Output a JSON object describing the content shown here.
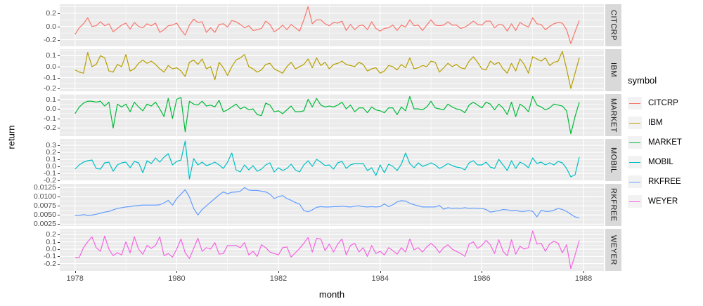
{
  "axis": {
    "x_label": "month",
    "y_label": "return"
  },
  "legend": {
    "title": "symbol",
    "entries": [
      {
        "label": "CITCRP",
        "color": "#F8766D"
      },
      {
        "label": "IBM",
        "color": "#B79F00"
      },
      {
        "label": "MARKET",
        "color": "#00BA38"
      },
      {
        "label": "MOBIL",
        "color": "#00BFC4"
      },
      {
        "label": "RKFREE",
        "color": "#619CFF"
      },
      {
        "label": "WEYER",
        "color": "#F564E3"
      }
    ]
  },
  "panel_style": {
    "background": "#EBEBEB",
    "strip_background": "#D9D9D9",
    "grid_color": "#FFFFFF",
    "tick_text_color": "#4D4D4D"
  },
  "chart_data": {
    "type": "line",
    "title": "",
    "xlabel": "month",
    "ylabel": "return",
    "faceting": "one row per symbol, free y scales, strip labels on right",
    "x_start_year": 1978,
    "x_step": "1 month",
    "n_points": 120,
    "xlim": [
      1977.7,
      1988.4
    ],
    "x_ticks": [
      1978,
      1980,
      1982,
      1984,
      1986,
      1988
    ],
    "x_tick_labels": [
      "1978",
      "1980",
      "1982",
      "1984",
      "1986",
      "1988"
    ],
    "x_minor_ticks": [
      1979,
      1981,
      1983,
      1985,
      1987
    ],
    "series": [
      {
        "name": "CITCRP",
        "color": "#F8766D",
        "ylim": [
          -0.3,
          0.335
        ],
        "y_ticks": [
          0.2,
          0.0,
          -0.2
        ],
        "y_tick_labels": [
          "0.2",
          "0.0",
          "-0.2"
        ],
        "values": [
          -0.12,
          -0.02,
          0.04,
          0.13,
          0.0,
          0.01,
          0.07,
          0.01,
          0.04,
          -0.08,
          -0.03,
          0.02,
          0.05,
          -0.04,
          0.06,
          0.0,
          -0.02,
          0.04,
          0.01,
          0.05,
          -0.09,
          -0.05,
          0.01,
          0.02,
          0.05,
          -0.05,
          -0.13,
          0.02,
          0.11,
          0.06,
          0.07,
          -0.09,
          -0.02,
          -0.09,
          0.03,
          0.04,
          -0.01,
          0.09,
          0.07,
          0.03,
          -0.02,
          0.01,
          -0.06,
          -0.05,
          -0.03,
          0.08,
          0.03,
          -0.08,
          -0.04,
          0.02,
          -0.05,
          0.03,
          -0.02,
          -0.07,
          0.1,
          0.3,
          0.04,
          0.1,
          0.1,
          0.04,
          0.01,
          0.06,
          0.05,
          0.08,
          -0.06,
          0.03,
          -0.05,
          0.01,
          0.02,
          -0.05,
          0.07,
          -0.03,
          -0.07,
          -0.03,
          -0.02,
          0.02,
          -0.06,
          0.02,
          -0.01,
          0.1,
          0.01,
          0.02,
          -0.06,
          0.02,
          0.1,
          0.02,
          0.01,
          0.02,
          0.07,
          0.02,
          0.02,
          -0.03,
          -0.01,
          0.03,
          0.08,
          0.03,
          0.02,
          0.08,
          0.08,
          -0.02,
          0.03,
          0.02,
          -0.07,
          0.04,
          -0.06,
          0.06,
          0.02,
          -0.01,
          0.13,
          0.04,
          0.03,
          -0.05,
          0.0,
          0.04,
          0.06,
          0.05,
          -0.05,
          -0.26,
          -0.08,
          0.09
        ]
      },
      {
        "name": "IBM",
        "color": "#B79F00",
        "ylim": [
          -0.225,
          0.16
        ],
        "y_ticks": [
          0.1,
          0.0,
          -0.1,
          -0.2
        ],
        "y_tick_labels": [
          "0.1",
          "0.0",
          "-0.1",
          "-0.2"
        ],
        "values": [
          -0.03,
          -0.05,
          -0.06,
          0.13,
          0.0,
          0.02,
          0.1,
          0.08,
          -0.04,
          -0.05,
          0.02,
          0.0,
          0.11,
          -0.04,
          -0.02,
          0.03,
          0.06,
          0.03,
          0.05,
          0.02,
          -0.02,
          -0.05,
          0.01,
          -0.02,
          -0.01,
          -0.04,
          -0.09,
          0.04,
          0.06,
          0.02,
          0.07,
          -0.02,
          0.0,
          -0.12,
          0.04,
          -0.01,
          -0.08,
          0.0,
          0.06,
          0.08,
          0.11,
          0.0,
          -0.02,
          -0.05,
          -0.03,
          0.02,
          0.03,
          -0.02,
          -0.04,
          -0.06,
          0.0,
          0.04,
          -0.02,
          0.0,
          0.02,
          0.07,
          -0.01,
          0.08,
          0.01,
          0.04,
          -0.02,
          0.02,
          0.03,
          0.05,
          0.02,
          0.01,
          0.0,
          0.04,
          0.02,
          -0.04,
          -0.02,
          -0.01,
          -0.06,
          -0.04,
          0.01,
          0.0,
          -0.03,
          0.02,
          -0.01,
          0.08,
          -0.02,
          -0.01,
          0.01,
          0.0,
          0.05,
          0.04,
          -0.05,
          -0.01,
          0.03,
          0.0,
          0.02,
          -0.01,
          -0.02,
          0.05,
          0.09,
          0.04,
          -0.02,
          -0.03,
          0.05,
          0.02,
          0.04,
          -0.02,
          -0.06,
          0.03,
          -0.04,
          0.07,
          0.02,
          -0.06,
          0.09,
          0.07,
          0.05,
          0.08,
          0.01,
          0.04,
          0.05,
          0.14,
          -0.02,
          -0.2,
          -0.06,
          0.08
        ]
      },
      {
        "name": "MARKET",
        "color": "#00BA38",
        "ylim": [
          -0.285,
          0.155
        ],
        "y_ticks": [
          0.1,
          0.0,
          -0.1,
          -0.2
        ],
        "y_tick_labels": [
          "0.1",
          "0.0",
          "-0.1",
          "-0.2"
        ],
        "values": [
          -0.05,
          0.02,
          0.06,
          0.08,
          0.08,
          0.07,
          0.08,
          0.03,
          0.07,
          -0.2,
          0.05,
          0.02,
          0.05,
          -0.03,
          0.07,
          0.02,
          -0.02,
          0.05,
          0.03,
          0.07,
          0.0,
          -0.08,
          0.11,
          -0.1,
          0.1,
          0.12,
          -0.24,
          0.08,
          0.05,
          0.04,
          0.08,
          0.03,
          0.04,
          0.02,
          0.09,
          -0.03,
          -0.01,
          0.02,
          0.05,
          0.0,
          0.02,
          -0.01,
          0.0,
          -0.06,
          -0.07,
          0.06,
          0.04,
          -0.03,
          -0.02,
          -0.05,
          -0.01,
          0.03,
          -0.03,
          -0.03,
          -0.02,
          0.1,
          0.02,
          0.11,
          0.04,
          0.02,
          0.03,
          0.02,
          0.04,
          0.07,
          0.0,
          0.04,
          -0.03,
          0.01,
          0.01,
          -0.04,
          0.02,
          -0.01,
          -0.02,
          -0.04,
          0.01,
          0.01,
          -0.06,
          0.02,
          -0.02,
          0.13,
          0.0,
          0.0,
          -0.01,
          0.02,
          0.08,
          0.01,
          0.0,
          -0.01,
          0.05,
          0.02,
          0.0,
          -0.01,
          -0.04,
          0.04,
          0.07,
          0.04,
          0.01,
          0.07,
          0.05,
          -0.01,
          0.05,
          0.01,
          -0.06,
          0.07,
          -0.08,
          0.05,
          0.02,
          -0.03,
          0.13,
          0.04,
          0.02,
          -0.01,
          0.01,
          0.05,
          0.04,
          0.03,
          -0.02,
          -0.26,
          -0.08,
          0.07
        ]
      },
      {
        "name": "MOBIL",
        "color": "#00BFC4",
        "ylim": [
          -0.21,
          0.39
        ],
        "y_ticks": [
          0.3,
          0.2,
          0.1,
          0.0,
          -0.1,
          -0.2
        ],
        "y_tick_labels": [
          "0.3",
          "0.2",
          "0.1",
          "0.0",
          "-0.1",
          "-0.2"
        ],
        "values": [
          -0.04,
          0.02,
          0.06,
          0.08,
          0.09,
          -0.03,
          -0.04,
          0.05,
          0.06,
          -0.07,
          0.02,
          0.05,
          0.06,
          -0.02,
          0.07,
          0.05,
          -0.09,
          0.08,
          0.04,
          0.12,
          0.06,
          0.13,
          0.18,
          0.02,
          0.07,
          0.09,
          0.36,
          -0.18,
          0.11,
          0.02,
          0.06,
          0.01,
          0.03,
          0.06,
          0.02,
          -0.03,
          0.06,
          0.19,
          -0.05,
          -0.08,
          0.02,
          -0.05,
          0.01,
          -0.07,
          -0.04,
          0.02,
          0.05,
          -0.08,
          -0.02,
          -0.06,
          -0.03,
          0.03,
          -0.05,
          -0.08,
          0.02,
          0.08,
          0.0,
          0.1,
          0.06,
          0.01,
          0.02,
          -0.04,
          0.05,
          0.07,
          -0.03,
          0.02,
          0.04,
          0.04,
          0.04,
          -0.06,
          -0.02,
          -0.13,
          0.02,
          -0.09,
          0.03,
          0.0,
          -0.06,
          0.03,
          0.19,
          0.04,
          -0.02,
          0.05,
          0.0,
          0.02,
          0.05,
          0.02,
          -0.03,
          0.0,
          0.04,
          0.01,
          -0.01,
          -0.02,
          -0.05,
          0.05,
          0.08,
          0.02,
          0.02,
          0.06,
          -0.01,
          -0.03,
          0.1,
          0.02,
          -0.06,
          0.08,
          -0.03,
          0.06,
          0.03,
          -0.02,
          0.12,
          0.04,
          0.06,
          0.02,
          0.05,
          0.02,
          0.07,
          0.05,
          -0.03,
          -0.15,
          -0.12,
          0.13
        ]
      },
      {
        "name": "RKFREE",
        "color": "#619CFF",
        "ylim": [
          0.002,
          0.0135
        ],
        "y_ticks": [
          0.0125,
          0.01,
          0.0075,
          0.005,
          0.0025
        ],
        "y_tick_labels": [
          "0.0125",
          "0.0100",
          "0.0075",
          "0.0050",
          "0.0025"
        ],
        "values": [
          0.0049,
          0.0049,
          0.0051,
          0.0049,
          0.005,
          0.0052,
          0.0055,
          0.0058,
          0.006,
          0.0064,
          0.0068,
          0.007,
          0.0072,
          0.0073,
          0.0075,
          0.0076,
          0.0077,
          0.0077,
          0.0077,
          0.0077,
          0.0078,
          0.0083,
          0.009,
          0.0077,
          0.0095,
          0.0107,
          0.0119,
          0.0099,
          0.0068,
          0.005,
          0.0065,
          0.0075,
          0.0085,
          0.0095,
          0.0105,
          0.0113,
          0.0108,
          0.0112,
          0.0113,
          0.0115,
          0.0125,
          0.0118,
          0.0117,
          0.0117,
          0.0115,
          0.0113,
          0.0107,
          0.0095,
          0.01,
          0.0103,
          0.0095,
          0.009,
          0.0084,
          0.008,
          0.0062,
          0.0059,
          0.0064,
          0.0071,
          0.0073,
          0.0072,
          0.0072,
          0.0073,
          0.0073,
          0.0074,
          0.0073,
          0.0072,
          0.0074,
          0.0075,
          0.0073,
          0.0072,
          0.0073,
          0.0072,
          0.0073,
          0.008,
          0.0073,
          0.0078,
          0.0086,
          0.0089,
          0.0088,
          0.0082,
          0.0078,
          0.0075,
          0.0072,
          0.0072,
          0.0072,
          0.0072,
          0.0076,
          0.0066,
          0.007,
          0.0068,
          0.0069,
          0.0068,
          0.007,
          0.0068,
          0.0069,
          0.0068,
          0.0068,
          0.0065,
          0.0058,
          0.006,
          0.0062,
          0.0065,
          0.0064,
          0.0062,
          0.0063,
          0.006,
          0.006,
          0.0062,
          0.006,
          0.0045,
          0.0063,
          0.006,
          0.006,
          0.0063,
          0.0068,
          0.0065,
          0.006,
          0.0052,
          0.0045,
          0.0042
        ]
      },
      {
        "name": "WEYER",
        "color": "#F564E3",
        "ylim": [
          -0.3,
          0.28
        ],
        "y_ticks": [
          0.2,
          0.1,
          0.0,
          -0.1,
          -0.2
        ],
        "y_tick_labels": [
          "0.2",
          "0.1",
          "0.0",
          "-0.1",
          "-0.2"
        ],
        "values": [
          -0.115,
          -0.115,
          0.02,
          0.1,
          0.17,
          0.02,
          -0.03,
          0.18,
          0.0,
          -0.09,
          -0.05,
          -0.08,
          0.1,
          -0.05,
          0.17,
          0.0,
          -0.07,
          0.05,
          0.01,
          0.05,
          0.17,
          -0.09,
          -0.06,
          -0.11,
          0.0,
          0.14,
          -0.05,
          -0.13,
          0.01,
          0.15,
          -0.03,
          0.02,
          0.0,
          0.09,
          -0.07,
          -0.06,
          0.05,
          0.05,
          0.05,
          0.02,
          0.09,
          -0.08,
          -0.03,
          -0.1,
          0.06,
          0.02,
          -0.04,
          -0.06,
          -0.08,
          0.02,
          0.03,
          -0.11,
          -0.05,
          0.01,
          0.08,
          0.16,
          -0.04,
          0.15,
          0.14,
          -0.02,
          0.07,
          -0.04,
          0.07,
          0.14,
          -0.08,
          0.05,
          0.08,
          -0.04,
          0.02,
          -0.1,
          0.05,
          -0.06,
          -0.03,
          -0.08,
          0.02,
          -0.02,
          -0.07,
          0.02,
          -0.04,
          0.14,
          -0.01,
          0.02,
          -0.04,
          0.03,
          0.08,
          0.03,
          -0.05,
          0.02,
          0.06,
          0.0,
          -0.03,
          -0.06,
          -0.1,
          0.07,
          0.1,
          0.01,
          0.05,
          0.12,
          0.06,
          -0.06,
          0.13,
          -0.03,
          -0.09,
          0.13,
          -0.07,
          0.04,
          0.0,
          0.02,
          0.25,
          0.07,
          0.08,
          -0.03,
          0.07,
          0.11,
          0.08,
          -0.05,
          0.06,
          -0.27,
          -0.08,
          0.12
        ]
      }
    ]
  }
}
